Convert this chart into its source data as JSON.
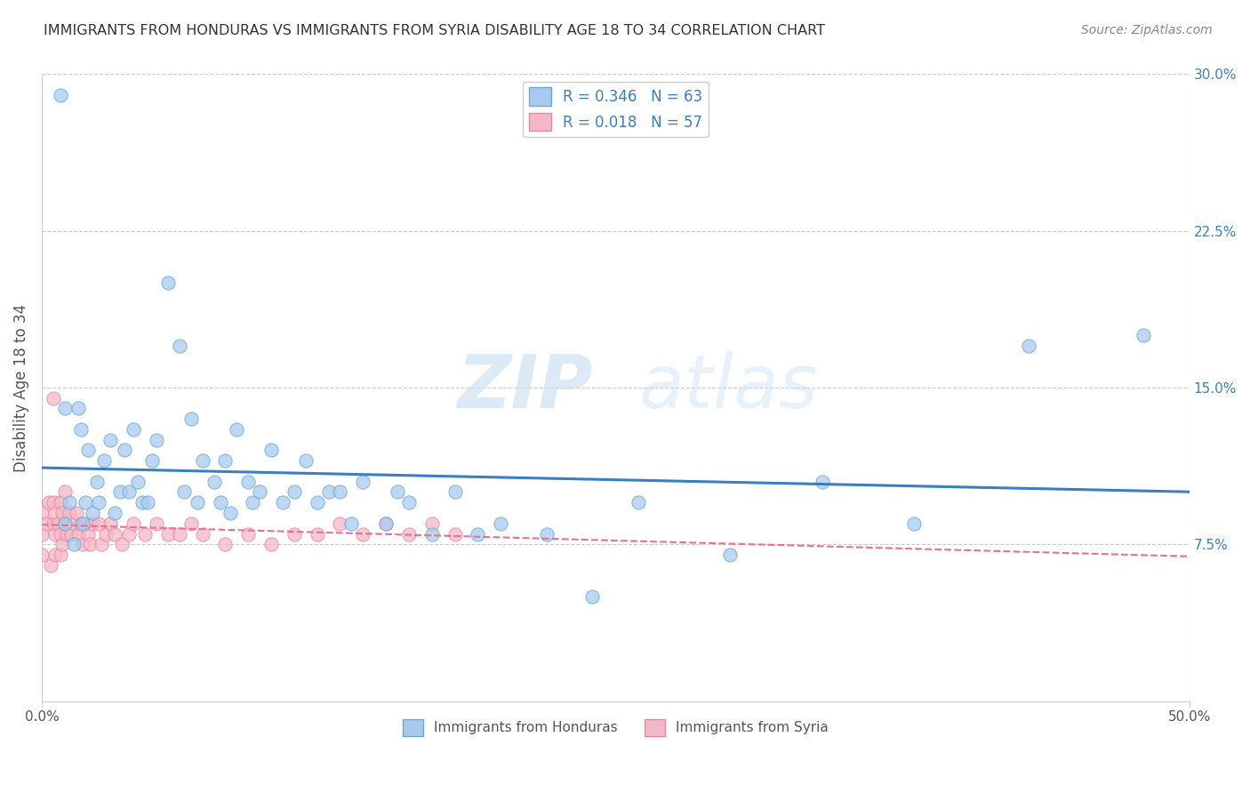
{
  "title": "IMMIGRANTS FROM HONDURAS VS IMMIGRANTS FROM SYRIA DISABILITY AGE 18 TO 34 CORRELATION CHART",
  "source": "Source: ZipAtlas.com",
  "ylabel": "Disability Age 18 to 34",
  "xlim": [
    0.0,
    0.5
  ],
  "ylim": [
    0.0,
    0.3
  ],
  "xticks": [
    0.0,
    0.5
  ],
  "xticklabels": [
    "0.0%",
    "50.0%"
  ],
  "yticks": [
    0.075,
    0.15,
    0.225,
    0.3
  ],
  "yticklabels": [
    "7.5%",
    "15.0%",
    "22.5%",
    "30.0%"
  ],
  "honduras_marker_fill": "#a8caee",
  "honduras_marker_edge": "#6aaad4",
  "syria_marker_fill": "#f5b8c8",
  "syria_marker_edge": "#e888a0",
  "trend_honduras_color": "#3a7fc1",
  "trend_syria_color": "#e87090",
  "r_honduras": 0.346,
  "n_honduras": 63,
  "r_syria": 0.018,
  "n_syria": 57,
  "legend_label_honduras": "Immigrants from Honduras",
  "legend_label_syria": "Immigrants from Syria",
  "watermark_zip": "ZIP",
  "watermark_atlas": "atlas",
  "background_color": "#ffffff",
  "grid_color": "#cccccc",
  "honduras_x": [
    0.008,
    0.01,
    0.01,
    0.012,
    0.014,
    0.016,
    0.017,
    0.018,
    0.019,
    0.02,
    0.022,
    0.024,
    0.025,
    0.027,
    0.03,
    0.032,
    0.034,
    0.036,
    0.038,
    0.04,
    0.042,
    0.044,
    0.046,
    0.048,
    0.05,
    0.055,
    0.06,
    0.062,
    0.065,
    0.068,
    0.07,
    0.075,
    0.078,
    0.08,
    0.082,
    0.085,
    0.09,
    0.092,
    0.095,
    0.1,
    0.105,
    0.11,
    0.115,
    0.12,
    0.125,
    0.13,
    0.135,
    0.14,
    0.15,
    0.155,
    0.16,
    0.17,
    0.18,
    0.19,
    0.2,
    0.22,
    0.24,
    0.26,
    0.3,
    0.34,
    0.38,
    0.43,
    0.48
  ],
  "honduras_y": [
    0.29,
    0.14,
    0.085,
    0.095,
    0.075,
    0.14,
    0.13,
    0.085,
    0.095,
    0.12,
    0.09,
    0.105,
    0.095,
    0.115,
    0.125,
    0.09,
    0.1,
    0.12,
    0.1,
    0.13,
    0.105,
    0.095,
    0.095,
    0.115,
    0.125,
    0.2,
    0.17,
    0.1,
    0.135,
    0.095,
    0.115,
    0.105,
    0.095,
    0.115,
    0.09,
    0.13,
    0.105,
    0.095,
    0.1,
    0.12,
    0.095,
    0.1,
    0.115,
    0.095,
    0.1,
    0.1,
    0.085,
    0.105,
    0.085,
    0.1,
    0.095,
    0.08,
    0.1,
    0.08,
    0.085,
    0.08,
    0.05,
    0.095,
    0.07,
    0.105,
    0.085,
    0.17,
    0.175
  ],
  "syria_x": [
    0.0,
    0.0,
    0.0,
    0.002,
    0.003,
    0.004,
    0.005,
    0.005,
    0.005,
    0.006,
    0.006,
    0.006,
    0.007,
    0.008,
    0.008,
    0.008,
    0.009,
    0.009,
    0.01,
    0.01,
    0.011,
    0.012,
    0.013,
    0.014,
    0.015,
    0.016,
    0.017,
    0.018,
    0.019,
    0.02,
    0.021,
    0.022,
    0.025,
    0.026,
    0.028,
    0.03,
    0.032,
    0.035,
    0.038,
    0.04,
    0.045,
    0.05,
    0.055,
    0.06,
    0.065,
    0.07,
    0.08,
    0.09,
    0.1,
    0.11,
    0.12,
    0.13,
    0.14,
    0.15,
    0.16,
    0.17,
    0.18
  ],
  "syria_y": [
    0.09,
    0.08,
    0.07,
    0.085,
    0.095,
    0.065,
    0.145,
    0.095,
    0.085,
    0.09,
    0.08,
    0.07,
    0.085,
    0.095,
    0.08,
    0.07,
    0.09,
    0.075,
    0.1,
    0.085,
    0.08,
    0.09,
    0.08,
    0.085,
    0.09,
    0.08,
    0.085,
    0.075,
    0.085,
    0.08,
    0.075,
    0.085,
    0.085,
    0.075,
    0.08,
    0.085,
    0.08,
    0.075,
    0.08,
    0.085,
    0.08,
    0.085,
    0.08,
    0.08,
    0.085,
    0.08,
    0.075,
    0.08,
    0.075,
    0.08,
    0.08,
    0.085,
    0.08,
    0.085,
    0.08,
    0.085,
    0.08
  ]
}
